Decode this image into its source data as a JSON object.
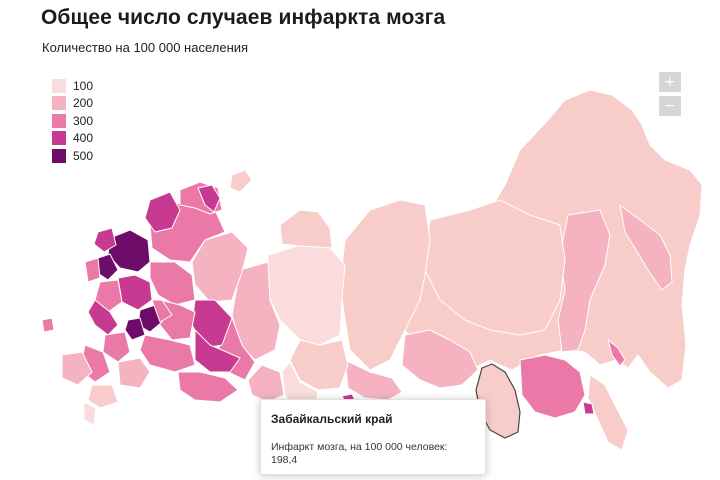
{
  "header": {
    "title": "Общее число случаев инфаркта мозга",
    "subtitle": "Количество на 100 000 населения"
  },
  "legend": {
    "items": [
      {
        "label": "100",
        "color": "#fbdcdc"
      },
      {
        "label": "200",
        "color": "#f5b3c2"
      },
      {
        "label": "300",
        "color": "#ea79a8"
      },
      {
        "label": "400",
        "color": "#c83991"
      },
      {
        "label": "500",
        "color": "#6e0c6a"
      }
    ]
  },
  "zoom": {
    "in_label": "+",
    "out_label": "−"
  },
  "tooltip": {
    "region": "Забайкальский край",
    "metric": "Инфаркт мозга, на 100 000 человек:",
    "value": "198,4"
  },
  "colors": {
    "light": "#fbdcdc",
    "light2": "#f8ccc9",
    "mid": "#f5b3c2",
    "pink": "#ea79a8",
    "dark": "#c83991",
    "darkest": "#6e0c6a",
    "border": "#ffffff",
    "selected_border": "#444444"
  },
  "map": {
    "highlighted_region": "Забайкальский край"
  }
}
